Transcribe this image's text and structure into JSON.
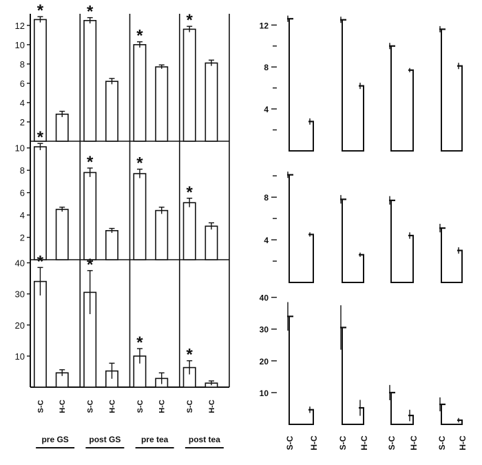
{
  "chart_data": [
    {
      "type": "bar",
      "panel": "left-top",
      "groups": [
        "pre GS",
        "post GS",
        "pre tea",
        "post tea"
      ],
      "bar_labels": [
        "S-C",
        "H-C"
      ],
      "ylim": [
        0,
        13.2
      ],
      "yticks": [
        2,
        4,
        6,
        8,
        10,
        12
      ],
      "values": [
        [
          12.6,
          2.8
        ],
        [
          12.5,
          6.2
        ],
        [
          10.0,
          7.7
        ],
        [
          11.6,
          8.1
        ]
      ],
      "errors": [
        [
          0.3,
          0.3
        ],
        [
          0.3,
          0.3
        ],
        [
          0.3,
          0.2
        ],
        [
          0.3,
          0.3
        ]
      ],
      "significance": "*"
    },
    {
      "type": "bar",
      "panel": "left-middle",
      "groups": [
        "pre GS",
        "post GS",
        "pre tea",
        "post tea"
      ],
      "bar_labels": [
        "S-C",
        "H-C"
      ],
      "ylim": [
        0,
        10.6
      ],
      "yticks": [
        2,
        4,
        6,
        8,
        10
      ],
      "values": [
        [
          10.1,
          4.5
        ],
        [
          7.8,
          2.6
        ],
        [
          7.7,
          4.4
        ],
        [
          5.1,
          3.0
        ]
      ],
      "errors": [
        [
          0.3,
          0.2
        ],
        [
          0.4,
          0.2
        ],
        [
          0.4,
          0.3
        ],
        [
          0.4,
          0.3
        ]
      ],
      "significance": "*"
    },
    {
      "type": "bar",
      "panel": "left-bottom",
      "groups": [
        "pre GS",
        "post GS",
        "pre tea",
        "post tea"
      ],
      "bar_labels": [
        "S-C",
        "H-C"
      ],
      "ylim": [
        0,
        41
      ],
      "yticks": [
        10,
        20,
        30,
        40
      ],
      "values": [
        [
          34,
          4.6
        ],
        [
          30.5,
          5.2
        ],
        [
          10,
          2.8
        ],
        [
          6.3,
          1.3
        ]
      ],
      "errors": [
        [
          4.5,
          1
        ],
        [
          7,
          2.5
        ],
        [
          2.4,
          1.8
        ],
        [
          2.2,
          0.7
        ]
      ],
      "significance": "*"
    },
    {
      "type": "bar",
      "panel": "right-top",
      "bar_labels": [
        "S-C",
        "H-C"
      ],
      "ylim": [
        0,
        13.6
      ],
      "yticks": [
        4,
        8,
        12
      ],
      "minor_yticks": [
        2,
        6,
        10
      ],
      "values": [
        [
          12.6,
          2.8
        ],
        [
          12.5,
          6.2
        ],
        [
          10.0,
          7.7
        ],
        [
          11.6,
          8.1
        ]
      ],
      "errors": [
        [
          0.3,
          0.3
        ],
        [
          0.3,
          0.3
        ],
        [
          0.3,
          0.2
        ],
        [
          0.3,
          0.3
        ]
      ]
    },
    {
      "type": "bar",
      "panel": "right-middle",
      "bar_labels": [
        "S-C",
        "H-C"
      ],
      "ylim": [
        0,
        10.6
      ],
      "yticks": [
        4,
        8
      ],
      "minor_yticks": [
        2,
        6,
        10
      ],
      "values": [
        [
          10.1,
          4.5
        ],
        [
          7.8,
          2.6
        ],
        [
          7.7,
          4.4
        ],
        [
          5.1,
          3.0
        ]
      ],
      "errors": [
        [
          0.3,
          0.2
        ],
        [
          0.4,
          0.2
        ],
        [
          0.4,
          0.3
        ],
        [
          0.4,
          0.3
        ]
      ]
    },
    {
      "type": "bar",
      "panel": "right-bottom",
      "bar_labels": [
        "S-C",
        "H-C"
      ],
      "ylim": [
        0,
        41
      ],
      "yticks": [
        10,
        20,
        30,
        40
      ],
      "values": [
        [
          34,
          4.6
        ],
        [
          30.5,
          5.2
        ],
        [
          10,
          2.8
        ],
        [
          6.3,
          1.3
        ]
      ],
      "errors": [
        [
          4.5,
          1
        ],
        [
          7,
          2.5
        ],
        [
          2.4,
          1.8
        ],
        [
          2.2,
          0.7
        ]
      ]
    }
  ]
}
